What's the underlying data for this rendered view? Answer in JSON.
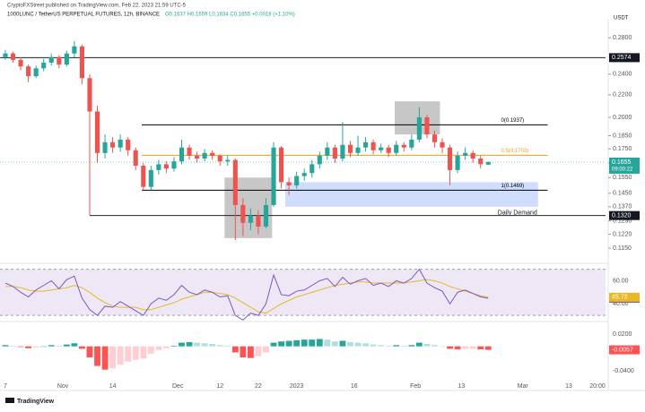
{
  "header": {
    "publisher": "CryptoFXStreet published on TradingView.com, Feb 22, 2023 21:59 UTC-5",
    "symbol": "1000LUNC / TetherUS PERPETUAL FUTURES, 12h, BINANCE",
    "ohlc": "O0.1637 H0.1659 L0.1634 C0.1655 +0.0018 (+1.10%)"
  },
  "footer": {
    "brand": "TradingView"
  },
  "chart_data": [
    {
      "type": "candlestick",
      "y_unit": "USDT",
      "log_scale": true,
      "up_color": "#26a69a",
      "down_color": "#ef5350",
      "x": [
        -15,
        -13,
        -11,
        -9,
        -7,
        -5,
        -3,
        -1,
        1,
        3,
        5,
        7,
        9,
        11,
        13,
        15,
        17,
        19,
        21,
        23,
        25,
        27,
        29,
        31,
        33,
        35,
        37,
        39,
        41,
        43,
        45,
        47,
        49,
        51,
        53,
        55,
        57,
        59,
        61,
        63,
        65,
        67,
        69,
        71,
        73,
        75,
        77,
        79,
        81,
        83,
        85,
        87,
        89,
        91,
        93,
        95,
        97,
        99,
        101,
        103,
        105,
        107,
        109,
        111
      ],
      "open": [
        0.258,
        0.262,
        0.255,
        0.248,
        0.238,
        0.246,
        0.252,
        0.258,
        0.25,
        0.262,
        0.27,
        0.236,
        0.205,
        0.172,
        0.18,
        0.176,
        0.182,
        0.174,
        0.163,
        0.149,
        0.16,
        0.164,
        0.161,
        0.166,
        0.176,
        0.17,
        0.168,
        0.172,
        0.17,
        0.166,
        0.167,
        0.138,
        0.128,
        0.132,
        0.126,
        0.138,
        0.176,
        0.152,
        0.15,
        0.156,
        0.158,
        0.164,
        0.17,
        0.176,
        0.168,
        0.178,
        0.172,
        0.176,
        0.18,
        0.174,
        0.176,
        0.172,
        0.178,
        0.176,
        0.182,
        0.2,
        0.186,
        0.18,
        0.176,
        0.16,
        0.17,
        0.172,
        0.168,
        0.1637
      ],
      "high": [
        0.266,
        0.264,
        0.258,
        0.25,
        0.249,
        0.256,
        0.262,
        0.26,
        0.265,
        0.276,
        0.272,
        0.24,
        0.21,
        0.186,
        0.184,
        0.186,
        0.184,
        0.176,
        0.165,
        0.163,
        0.167,
        0.166,
        0.169,
        0.182,
        0.178,
        0.173,
        0.175,
        0.174,
        0.171,
        0.17,
        0.168,
        0.142,
        0.136,
        0.135,
        0.142,
        0.18,
        0.177,
        0.155,
        0.159,
        0.161,
        0.167,
        0.173,
        0.18,
        0.178,
        0.196,
        0.181,
        0.185,
        0.184,
        0.182,
        0.179,
        0.178,
        0.181,
        0.18,
        0.186,
        0.209,
        0.202,
        0.189,
        0.183,
        0.178,
        0.173,
        0.176,
        0.174,
        0.17,
        0.1659
      ],
      "low": [
        0.255,
        0.252,
        0.244,
        0.232,
        0.236,
        0.243,
        0.249,
        0.246,
        0.248,
        0.258,
        0.23,
        0.132,
        0.165,
        0.168,
        0.172,
        0.173,
        0.17,
        0.16,
        0.147,
        0.147,
        0.157,
        0.158,
        0.159,
        0.164,
        0.167,
        0.165,
        0.166,
        0.167,
        0.163,
        0.163,
        0.119,
        0.121,
        0.124,
        0.122,
        0.125,
        0.137,
        0.148,
        0.144,
        0.148,
        0.153,
        0.155,
        0.161,
        0.167,
        0.165,
        0.166,
        0.169,
        0.17,
        0.173,
        0.171,
        0.172,
        0.169,
        0.17,
        0.173,
        0.174,
        0.18,
        0.183,
        0.176,
        0.172,
        0.15,
        0.158,
        0.167,
        0.165,
        0.161,
        0.1634
      ],
      "close": [
        0.262,
        0.255,
        0.248,
        0.238,
        0.246,
        0.252,
        0.258,
        0.25,
        0.262,
        0.27,
        0.236,
        0.205,
        0.172,
        0.18,
        0.176,
        0.182,
        0.174,
        0.163,
        0.149,
        0.16,
        0.164,
        0.161,
        0.166,
        0.176,
        0.17,
        0.168,
        0.172,
        0.17,
        0.166,
        0.167,
        0.138,
        0.128,
        0.132,
        0.126,
        0.138,
        0.176,
        0.152,
        0.15,
        0.156,
        0.158,
        0.164,
        0.17,
        0.176,
        0.168,
        0.178,
        0.172,
        0.176,
        0.18,
        0.174,
        0.176,
        0.172,
        0.178,
        0.176,
        0.182,
        0.2,
        0.186,
        0.18,
        0.176,
        0.16,
        0.17,
        0.172,
        0.168,
        0.164,
        0.1655
      ],
      "countdown": "09:00:22",
      "xlim": [
        -16.4,
        141.6
      ],
      "xticks": [
        {
          "value": -15,
          "label": "7"
        },
        {
          "value": 0,
          "label": "Nov"
        },
        {
          "value": 13,
          "label": "14"
        },
        {
          "value": 30,
          "label": "Dec"
        },
        {
          "value": 41,
          "label": "12"
        },
        {
          "value": 51,
          "label": "22"
        },
        {
          "value": 61,
          "label": "2023"
        },
        {
          "value": 76,
          "label": "16"
        },
        {
          "value": 92,
          "label": "Feb"
        },
        {
          "value": 104,
          "label": "13"
        },
        {
          "value": 120,
          "label": "Mar"
        },
        {
          "value": 132,
          "label": "13"
        },
        {
          "value": 139.5,
          "label": "20:00"
        }
      ],
      "ylim": [
        0.1095,
        0.2988
      ],
      "yticks": [
        {
          "value": 0.28,
          "label": "0.2800"
        },
        {
          "value": 0.24,
          "label": "0.2400"
        },
        {
          "value": 0.22,
          "label": "0.2200"
        },
        {
          "value": 0.2,
          "label": "0.2000"
        },
        {
          "value": 0.185,
          "label": "0.1850"
        },
        {
          "value": 0.175,
          "label": "0.1750"
        },
        {
          "value": 0.165,
          "label": "0.1650"
        },
        {
          "value": 0.155,
          "label": "0.1550"
        },
        {
          "value": 0.145,
          "label": "0.1450"
        },
        {
          "value": 0.137,
          "label": "0.1370"
        },
        {
          "value": 0.129,
          "label": "0.1290"
        },
        {
          "value": 0.122,
          "label": "0.1220"
        },
        {
          "value": 0.115,
          "label": "0.1150"
        }
      ],
      "hlines": [
        {
          "value": 0.2574,
          "x": [
            -16.4,
            141.6
          ]
        },
        {
          "value": 0.132,
          "label": "0.1320",
          "x": [
            7,
            141.6
          ]
        }
      ],
      "fib_levels": [
        {
          "value": 0.1937,
          "label": "0(0.1937)",
          "color": "#000000",
          "x": [
            20.6,
            126.5
          ]
        },
        {
          "value": 0.1703,
          "label": "0.5(0.1703)",
          "color": "#f59c1a",
          "x": [
            20.6,
            126.5
          ]
        },
        {
          "value": 0.1469,
          "label": "1(0.1469)",
          "color": "#000000",
          "x": [
            20.6,
            126.5
          ]
        }
      ],
      "boxes": [
        {
          "x": [
            86.6,
            98.4
          ],
          "y": [
            0.186,
            0.214
          ],
          "color": "#bdbdbd"
        },
        {
          "x": [
            42.2,
            54.6
          ],
          "y": [
            0.12,
            0.155
          ],
          "color": "#bdbdbd"
        },
        {
          "x": [
            58,
            124
          ],
          "y": [
            0.137,
            0.152
          ],
          "color": "#c9d7fb",
          "label": "Daily Demand"
        }
      ]
    },
    {
      "type": "line",
      "series": [
        {
          "color": "#7e57c2",
          "values": [
            58,
            55,
            50,
            46,
            52,
            56,
            60,
            53,
            61,
            64,
            45,
            35,
            30,
            38,
            37,
            42,
            38,
            34,
            30,
            40,
            45,
            43,
            48,
            56,
            50,
            48,
            52,
            50,
            46,
            47,
            30,
            26,
            32,
            30,
            40,
            65,
            48,
            47,
            51,
            52,
            56,
            60,
            62,
            55,
            63,
            57,
            60,
            62,
            56,
            58,
            55,
            60,
            58,
            62,
            70,
            58,
            54,
            51,
            40,
            50,
            52,
            49,
            46,
            44.87
          ]
        },
        {
          "color": "#e8b923",
          "values": [
            55,
            55,
            54,
            52,
            51,
            51,
            52,
            53,
            54,
            56,
            54,
            50,
            45,
            41,
            38,
            37,
            37,
            37,
            35,
            35,
            37,
            39,
            41,
            44,
            46,
            48,
            50,
            50,
            49,
            48,
            45,
            41,
            37,
            33,
            32,
            36,
            40,
            43,
            46,
            48,
            50,
            52,
            54,
            56,
            57,
            58,
            59,
            59,
            58,
            58,
            58,
            58,
            58,
            59,
            60,
            61,
            60,
            58,
            55,
            53,
            51,
            49,
            47,
            45.72
          ]
        }
      ],
      "band": [
        30,
        70
      ],
      "band_color": "#ede7f6",
      "ylim": [
        27,
        72
      ],
      "yticks": [
        {
          "value": 60,
          "label": "60.00"
        },
        {
          "value": 40,
          "label": "40.00"
        }
      ]
    },
    {
      "type": "bar",
      "values": [
        0.002,
        0.001,
        -0.001,
        -0.003,
        -0.002,
        0.0,
        0.002,
        0.001,
        0.003,
        0.005,
        -0.004,
        -0.018,
        -0.032,
        -0.038,
        -0.036,
        -0.03,
        -0.025,
        -0.022,
        -0.02,
        -0.012,
        -0.006,
        -0.003,
        0.001,
        0.006,
        0.007,
        0.006,
        0.005,
        0.004,
        0.002,
        0.001,
        -0.01,
        -0.018,
        -0.019,
        -0.016,
        -0.01,
        0.006,
        0.008,
        0.009,
        0.01,
        0.011,
        0.011,
        0.012,
        0.011,
        0.008,
        0.009,
        0.007,
        0.006,
        0.005,
        0.003,
        0.002,
        0.001,
        0.002,
        0.001,
        0.002,
        0.006,
        0.004,
        0.002,
        0.0,
        -0.004,
        -0.005,
        -0.004,
        -0.004,
        -0.005,
        -0.0057
      ],
      "colors": {
        "pos_rising": "#26a69a",
        "pos_falling": "#b2dfdb",
        "neg_rising": "#ffcdd2",
        "neg_falling": "#ff5252"
      },
      "ylim": [
        -0.056,
        0.0361
      ],
      "yticks": [
        {
          "value": 0.02,
          "label": "0.0200"
        },
        {
          "value": -0.04,
          "label": "-0.0400"
        }
      ]
    }
  ]
}
